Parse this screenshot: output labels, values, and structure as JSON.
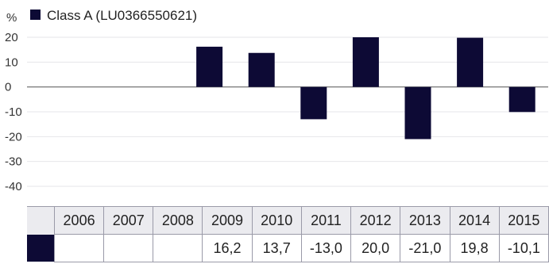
{
  "chart_data": {
    "type": "bar",
    "ylabel": "%",
    "ylim": [
      -40,
      20
    ],
    "yticks": [
      20,
      10,
      0,
      -10,
      -20,
      -30,
      -40
    ],
    "grid": true,
    "legend_placement": "top-left",
    "categories": [
      "2006",
      "2007",
      "2008",
      "2009",
      "2010",
      "2011",
      "2012",
      "2013",
      "2014",
      "2015"
    ],
    "series": [
      {
        "name": "Class A (LU0366550621)",
        "color": "#0d0a35",
        "values": [
          null,
          null,
          null,
          16.2,
          13.7,
          -13.0,
          20.0,
          -21.0,
          19.8,
          -10.1
        ],
        "value_labels": [
          "",
          "",
          "",
          "16,2",
          "13,7",
          "-13,0",
          "20,0",
          "-21,0",
          "19,8",
          "-10,1"
        ]
      }
    ]
  }
}
